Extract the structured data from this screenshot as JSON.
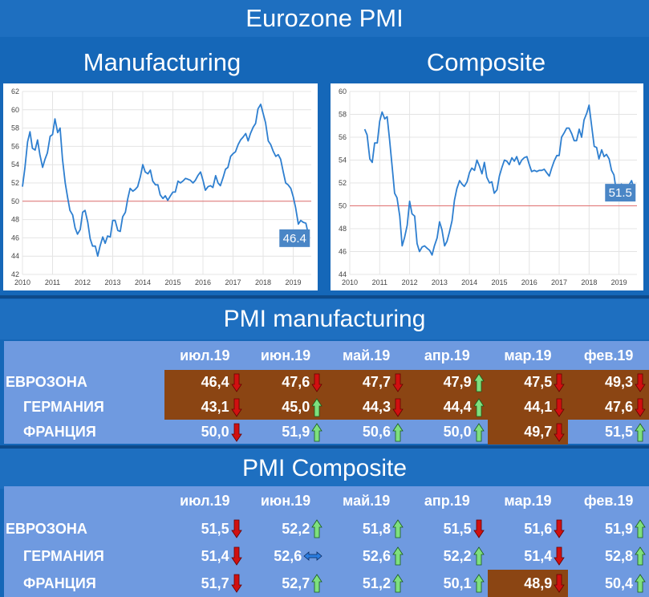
{
  "header": {
    "title": "Eurozone PMI"
  },
  "charts": {
    "manufacturing_title": "Manufacturing",
    "composite_title": "Composite"
  },
  "chart_data": [
    {
      "type": "line",
      "title": "Manufacturing",
      "xlim": [
        2010,
        2019.6
      ],
      "ylim": [
        42,
        62
      ],
      "xticks": [
        "2010",
        "2011",
        "2012",
        "2013",
        "2014",
        "2015",
        "2016",
        "2017",
        "2018",
        "2019"
      ],
      "yticks": [
        "42",
        "44",
        "46",
        "48",
        "50",
        "52",
        "54",
        "56",
        "58",
        "60",
        "62"
      ],
      "reference_line": 50,
      "last_value_label": "46.4",
      "colors": {
        "line": "#2e7fd0",
        "reference": "#e07070",
        "label_bg": "#4a86c6"
      },
      "x": [
        2010.0,
        2010.08,
        2010.17,
        2010.25,
        2010.33,
        2010.42,
        2010.5,
        2010.58,
        2010.67,
        2010.75,
        2010.83,
        2010.92,
        2011.0,
        2011.08,
        2011.17,
        2011.25,
        2011.33,
        2011.42,
        2011.5,
        2011.58,
        2011.67,
        2011.75,
        2011.83,
        2011.92,
        2012.0,
        2012.08,
        2012.17,
        2012.25,
        2012.33,
        2012.42,
        2012.5,
        2012.58,
        2012.67,
        2012.75,
        2012.83,
        2012.92,
        2013.0,
        2013.08,
        2013.17,
        2013.25,
        2013.33,
        2013.42,
        2013.5,
        2013.58,
        2013.67,
        2013.75,
        2013.83,
        2013.92,
        2014.0,
        2014.08,
        2014.17,
        2014.25,
        2014.33,
        2014.42,
        2014.5,
        2014.58,
        2014.67,
        2014.75,
        2014.83,
        2014.92,
        2015.0,
        2015.08,
        2015.17,
        2015.25,
        2015.33,
        2015.42,
        2015.5,
        2015.58,
        2015.67,
        2015.75,
        2015.83,
        2015.92,
        2016.0,
        2016.08,
        2016.17,
        2016.25,
        2016.33,
        2016.42,
        2016.5,
        2016.58,
        2016.67,
        2016.75,
        2016.83,
        2016.92,
        2017.0,
        2017.08,
        2017.17,
        2017.25,
        2017.33,
        2017.42,
        2017.5,
        2017.58,
        2017.67,
        2017.75,
        2017.83,
        2017.92,
        2018.0,
        2018.08,
        2018.17,
        2018.25,
        2018.33,
        2018.42,
        2018.5,
        2018.58,
        2018.67,
        2018.75,
        2018.83,
        2018.92,
        2019.0,
        2019.08,
        2019.17,
        2019.25,
        2019.33,
        2019.42,
        2019.5
      ],
      "y": [
        51.6,
        53.6,
        56.5,
        57.6,
        55.8,
        55.6,
        56.7,
        55.1,
        53.7,
        54.6,
        55.3,
        57.1,
        57.3,
        59.0,
        57.5,
        58.0,
        54.6,
        52.0,
        50.4,
        49.0,
        48.5,
        47.1,
        46.4,
        46.9,
        48.8,
        49.0,
        47.7,
        45.9,
        45.1,
        45.1,
        44.0,
        45.1,
        46.1,
        45.4,
        46.2,
        46.1,
        47.9,
        47.9,
        46.8,
        46.7,
        48.3,
        48.8,
        50.3,
        51.4,
        51.1,
        51.3,
        51.6,
        52.7,
        54.0,
        53.2,
        53.0,
        53.4,
        52.2,
        51.8,
        51.8,
        50.7,
        50.3,
        50.6,
        50.1,
        50.6,
        51.0,
        51.0,
        52.2,
        52.0,
        52.2,
        52.5,
        52.4,
        52.3,
        52.0,
        52.3,
        52.8,
        53.2,
        52.3,
        51.2,
        51.6,
        51.7,
        51.5,
        52.8,
        52.0,
        51.7,
        52.6,
        53.5,
        53.7,
        54.9,
        55.2,
        55.4,
        56.2,
        56.7,
        57.0,
        57.4,
        56.6,
        57.4,
        58.1,
        58.5,
        60.1,
        60.6,
        59.6,
        58.6,
        56.6,
        56.2,
        55.5,
        54.9,
        55.1,
        54.6,
        53.2,
        52.0,
        51.8,
        51.4,
        50.5,
        49.3,
        47.5,
        47.9,
        47.7,
        47.6,
        46.4
      ]
    },
    {
      "type": "line",
      "title": "Composite",
      "xlim": [
        2010,
        2019.6
      ],
      "ylim": [
        44,
        60
      ],
      "xticks": [
        "2010",
        "2011",
        "2012",
        "2013",
        "2014",
        "2015",
        "2016",
        "2017",
        "2018",
        "2019"
      ],
      "yticks": [
        "44",
        "46",
        "48",
        "50",
        "52",
        "54",
        "56",
        "58",
        "60"
      ],
      "reference_line": 50,
      "last_value_label": "51.5",
      "colors": {
        "line": "#2e7fd0",
        "reference": "#e07070",
        "label_bg": "#4a86c6"
      },
      "x": [
        2010.5,
        2010.58,
        2010.67,
        2010.75,
        2010.83,
        2010.92,
        2011.0,
        2011.08,
        2011.17,
        2011.25,
        2011.33,
        2011.42,
        2011.5,
        2011.58,
        2011.67,
        2011.75,
        2011.83,
        2011.92,
        2012.0,
        2012.08,
        2012.17,
        2012.25,
        2012.33,
        2012.42,
        2012.5,
        2012.58,
        2012.67,
        2012.75,
        2012.83,
        2012.92,
        2013.0,
        2013.08,
        2013.17,
        2013.25,
        2013.33,
        2013.42,
        2013.5,
        2013.58,
        2013.67,
        2013.75,
        2013.83,
        2013.92,
        2014.0,
        2014.08,
        2014.17,
        2014.25,
        2014.33,
        2014.42,
        2014.5,
        2014.58,
        2014.67,
        2014.75,
        2014.83,
        2014.92,
        2015.0,
        2015.08,
        2015.17,
        2015.25,
        2015.33,
        2015.42,
        2015.5,
        2015.58,
        2015.67,
        2015.75,
        2015.83,
        2015.92,
        2016.0,
        2016.08,
        2016.17,
        2016.25,
        2016.33,
        2016.42,
        2016.5,
        2016.58,
        2016.67,
        2016.75,
        2016.83,
        2016.92,
        2017.0,
        2017.08,
        2017.17,
        2017.25,
        2017.33,
        2017.42,
        2017.5,
        2017.58,
        2017.67,
        2017.75,
        2017.83,
        2017.92,
        2018.0,
        2018.08,
        2018.17,
        2018.25,
        2018.33,
        2018.42,
        2018.5,
        2018.58,
        2018.67,
        2018.75,
        2018.83,
        2018.92,
        2019.0,
        2019.08,
        2019.17,
        2019.25,
        2019.33,
        2019.42,
        2019.5
      ],
      "y": [
        56.7,
        56.2,
        54.1,
        53.8,
        55.5,
        55.5,
        57.4,
        58.2,
        57.6,
        57.8,
        55.8,
        53.3,
        51.1,
        50.7,
        49.1,
        46.5,
        47.2,
        48.3,
        50.4,
        49.3,
        49.1,
        46.7,
        46.0,
        46.4,
        46.5,
        46.3,
        46.1,
        45.7,
        46.5,
        47.2,
        48.6,
        47.9,
        46.5,
        46.9,
        47.7,
        48.7,
        50.5,
        51.5,
        52.2,
        51.9,
        51.7,
        52.1,
        52.9,
        53.3,
        53.1,
        54.0,
        53.5,
        52.8,
        53.8,
        52.5,
        52.0,
        52.1,
        51.1,
        51.4,
        52.6,
        53.3,
        54.0,
        53.9,
        53.6,
        54.2,
        53.9,
        54.3,
        53.6,
        54.0,
        54.2,
        54.3,
        53.6,
        53.0,
        53.1,
        53.0,
        53.1,
        53.1,
        53.2,
        52.9,
        52.6,
        53.3,
        53.9,
        54.4,
        54.4,
        56.0,
        56.4,
        56.8,
        56.8,
        56.3,
        55.7,
        55.7,
        56.7,
        56.0,
        57.5,
        58.1,
        58.8,
        57.1,
        55.2,
        55.1,
        54.1,
        54.9,
        54.3,
        54.5,
        54.1,
        53.1,
        52.7,
        51.1,
        51.0,
        51.9,
        51.6,
        51.5,
        51.8,
        52.2,
        51.5
      ]
    }
  ],
  "manufacturing_table": {
    "title": "PMI manufacturing",
    "columns": [
      "июл.19",
      "июн.19",
      "май.19",
      "апр.19",
      "мар.19",
      "фев.19"
    ],
    "rows": [
      {
        "label": "ЕВРОЗОНА",
        "cells": [
          {
            "v": "46,4",
            "a": "down",
            "hl": true
          },
          {
            "v": "47,6",
            "a": "down",
            "hl": true
          },
          {
            "v": "47,7",
            "a": "down",
            "hl": true
          },
          {
            "v": "47,9",
            "a": "up",
            "hl": true
          },
          {
            "v": "47,5",
            "a": "down",
            "hl": true
          },
          {
            "v": "49,3",
            "a": "down",
            "hl": true
          }
        ]
      },
      {
        "label": "ГЕРМАНИЯ",
        "cells": [
          {
            "v": "43,1",
            "a": "down",
            "hl": true
          },
          {
            "v": "45,0",
            "a": "up",
            "hl": true
          },
          {
            "v": "44,3",
            "a": "down",
            "hl": true
          },
          {
            "v": "44,4",
            "a": "up",
            "hl": true
          },
          {
            "v": "44,1",
            "a": "down",
            "hl": true
          },
          {
            "v": "47,6",
            "a": "down",
            "hl": true
          }
        ]
      },
      {
        "label": "ФРАНЦИЯ",
        "cells": [
          {
            "v": "50,0",
            "a": "down",
            "hl": false
          },
          {
            "v": "51,9",
            "a": "up",
            "hl": false
          },
          {
            "v": "50,6",
            "a": "up",
            "hl": false
          },
          {
            "v": "50,0",
            "a": "up",
            "hl": false
          },
          {
            "v": "49,7",
            "a": "down",
            "hl": true
          },
          {
            "v": "51,5",
            "a": "up",
            "hl": false
          }
        ]
      }
    ]
  },
  "composite_table": {
    "title": "PMI Composite",
    "columns": [
      "июл.19",
      "июн.19",
      "май.19",
      "апр.19",
      "мар.19",
      "фев.19"
    ],
    "rows": [
      {
        "label": "ЕВРОЗОНА",
        "cells": [
          {
            "v": "51,5",
            "a": "down",
            "hl": false
          },
          {
            "v": "52,2",
            "a": "up",
            "hl": false
          },
          {
            "v": "51,8",
            "a": "up",
            "hl": false
          },
          {
            "v": "51,5",
            "a": "down",
            "hl": false
          },
          {
            "v": "51,6",
            "a": "down",
            "hl": false
          },
          {
            "v": "51,9",
            "a": "up",
            "hl": false
          }
        ]
      },
      {
        "label": "ГЕРМАНИЯ",
        "cells": [
          {
            "v": "51,4",
            "a": "down",
            "hl": false
          },
          {
            "v": "52,6",
            "a": "flat",
            "hl": false
          },
          {
            "v": "52,6",
            "a": "up",
            "hl": false
          },
          {
            "v": "52,2",
            "a": "up",
            "hl": false
          },
          {
            "v": "51,4",
            "a": "down",
            "hl": false
          },
          {
            "v": "52,8",
            "a": "up",
            "hl": false
          }
        ]
      },
      {
        "label": "ФРАНЦИЯ",
        "cells": [
          {
            "v": "51,7",
            "a": "down",
            "hl": false
          },
          {
            "v": "52,7",
            "a": "up",
            "hl": false
          },
          {
            "v": "51,2",
            "a": "up",
            "hl": false
          },
          {
            "v": "50,1",
            "a": "up",
            "hl": false
          },
          {
            "v": "48,9",
            "a": "down",
            "hl": true
          },
          {
            "v": "50,4",
            "a": "up",
            "hl": false
          }
        ]
      }
    ]
  }
}
